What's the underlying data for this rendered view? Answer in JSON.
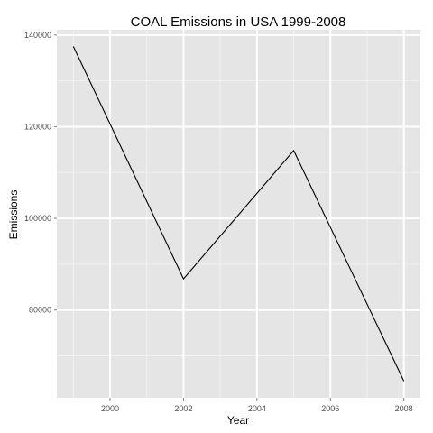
{
  "chart_data": {
    "type": "line",
    "title": "COAL Emissions in USA 1999-2008",
    "xlabel": "Year",
    "ylabel": "Emissions",
    "x": [
      1999,
      2002,
      2005,
      2008
    ],
    "series": [
      {
        "values": [
          137500,
          86800,
          114800,
          64500
        ]
      }
    ],
    "xticks": [
      2000,
      2002,
      2004,
      2006,
      2008
    ],
    "yticks": [
      80000,
      100000,
      120000,
      140000
    ],
    "xlim": [
      1998.55,
      2008.45
    ],
    "ylim": [
      60850,
      141150
    ],
    "grid": true,
    "colors": {
      "panel": "#e5e5e5",
      "grid_major": "#ffffff",
      "grid_minor": "#f2f2f2",
      "line": "#000000",
      "tick_label": "#4d4d4d"
    }
  }
}
